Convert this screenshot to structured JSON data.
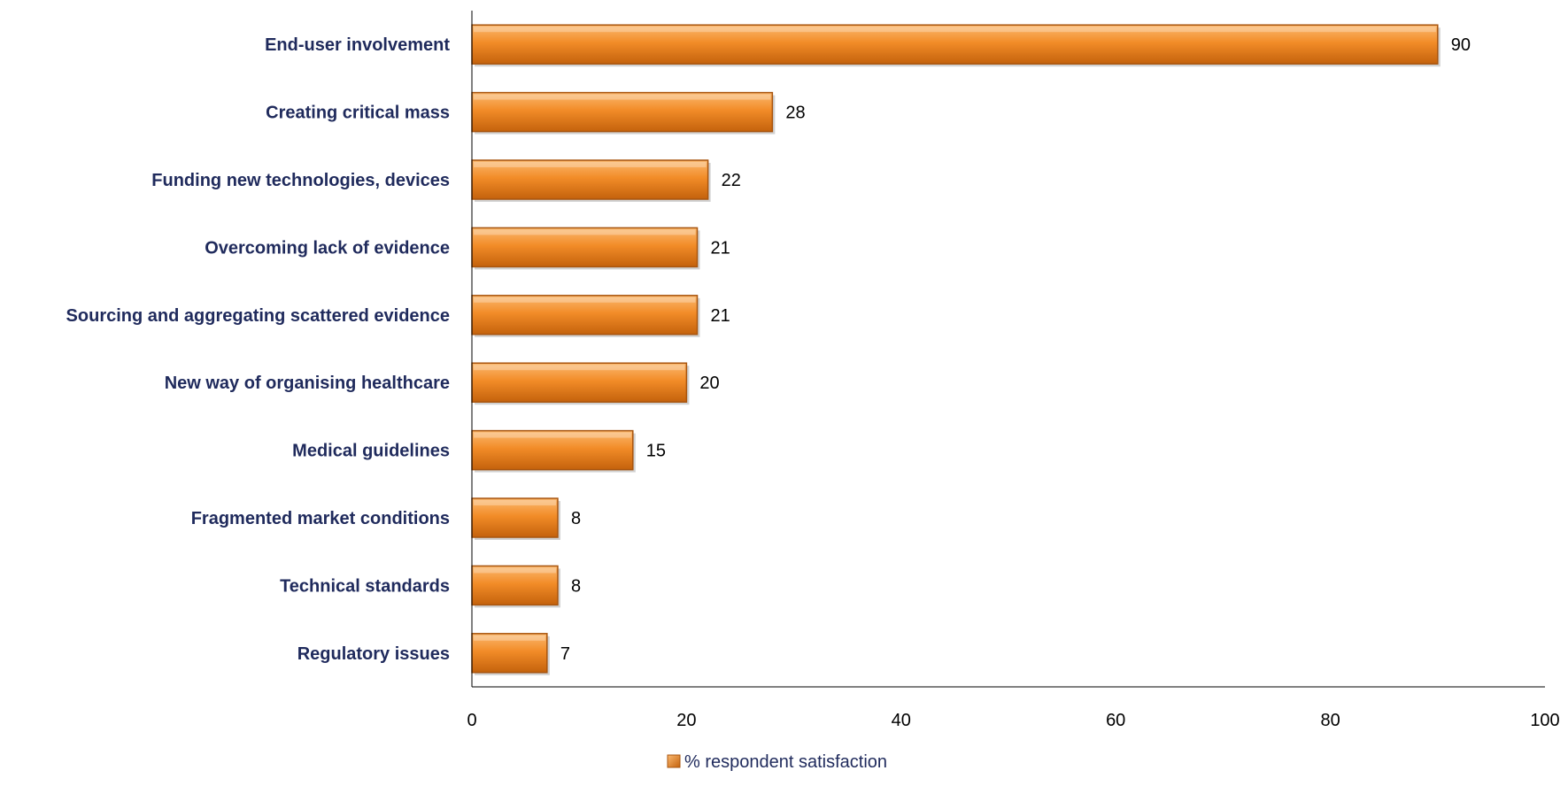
{
  "chart_data": {
    "type": "bar",
    "orientation": "horizontal",
    "categories": [
      "End-user involvement",
      "Creating critical mass",
      "Funding new technologies, devices",
      "Overcoming lack of evidence",
      "Sourcing and aggregating scattered evidence",
      "New way of organising healthcare",
      "Medical guidelines",
      "Fragmented market conditions",
      "Technical standards",
      "Regulatory issues"
    ],
    "series": [
      {
        "name": "% respondent satisfaction",
        "values": [
          90,
          28,
          22,
          21,
          21,
          20,
          15,
          8,
          8,
          7
        ]
      }
    ],
    "xlim": [
      0,
      100
    ],
    "xticks": [
      0,
      20,
      40,
      60,
      80,
      100
    ],
    "grid": false,
    "legend_position": "bottom",
    "colors": {
      "bar_light": "#fbb970",
      "bar_main": "#f28c28",
      "bar_dark": "#c4620c",
      "bar_edge": "#a8550f",
      "category_text": "#1f2a5c"
    }
  }
}
